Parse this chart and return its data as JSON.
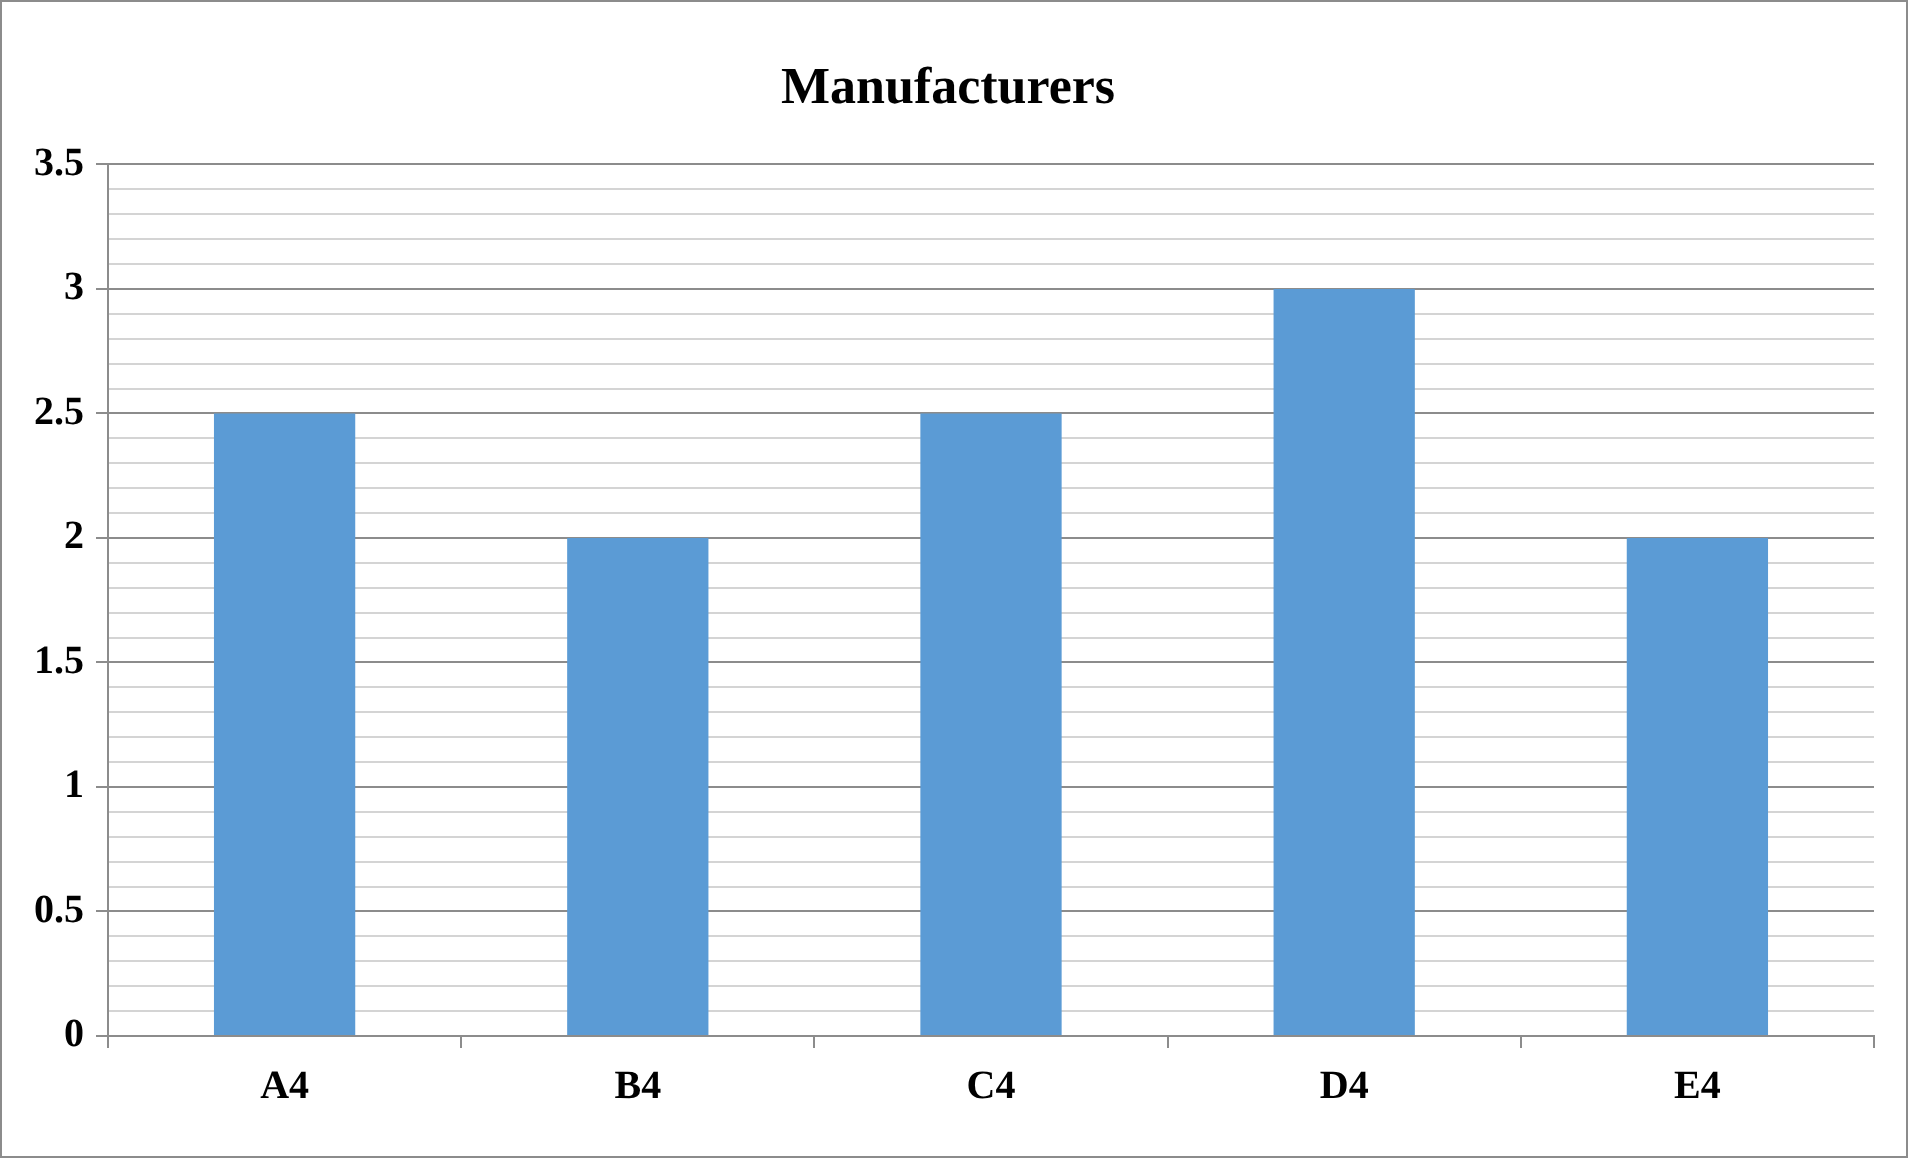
{
  "chart_data": {
    "type": "bar",
    "title": "Manufacturers",
    "categories": [
      "A4",
      "B4",
      "C4",
      "D4",
      "E4"
    ],
    "values": [
      2.5,
      2,
      2.5,
      3,
      2
    ],
    "color": "#5b9bd5",
    "ylim": [
      0,
      3.5
    ],
    "yticks": [
      0,
      {
        "value": 0.1,
        "label": null
      },
      {
        "value": 0.2,
        "label": null
      },
      {
        "value": 0.3,
        "label": null
      },
      {
        "value": 0.4,
        "label": null
      },
      0.5,
      {
        "value": 0.6,
        "label": null
      },
      {
        "value": 0.7,
        "label": null
      },
      {
        "value": 0.8,
        "label": null
      },
      {
        "value": 0.9,
        "label": null
      },
      1,
      {
        "value": 1.1,
        "label": null
      },
      {
        "value": 1.2,
        "label": null
      },
      {
        "value": 1.3,
        "label": null
      },
      {
        "value": 1.4,
        "label": null
      },
      1.5,
      {
        "value": 1.6,
        "label": null
      },
      {
        "value": 1.7,
        "label": null
      },
      {
        "value": 1.8,
        "label": null
      },
      {
        "value": 1.9,
        "label": null
      },
      2,
      {
        "value": 2.1,
        "label": null
      },
      {
        "value": 2.2,
        "label": null
      },
      {
        "value": 2.3,
        "label": null
      },
      {
        "value": 2.4,
        "label": null
      },
      2.5,
      {
        "value": 2.6,
        "label": null
      },
      {
        "value": 2.7,
        "label": null
      },
      {
        "value": 2.8,
        "label": null
      },
      {
        "value": 2.9,
        "label": null
      },
      3,
      {
        "value": 3.1,
        "label": null
      },
      {
        "value": 3.2,
        "label": null
      },
      {
        "value": 3.3,
        "label": null
      },
      {
        "value": 3.4,
        "label": null
      },
      3.5
    ],
    "grid": "y"
  }
}
